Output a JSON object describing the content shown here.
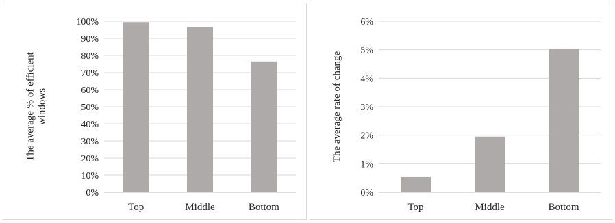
{
  "chart_data": [
    {
      "type": "bar",
      "categories": [
        "Top",
        "Middle",
        "Bottom"
      ],
      "values": [
        99.5,
        96.5,
        76.5
      ],
      "ylabel_lines": [
        "The average % of efficient",
        "windows"
      ],
      "ylim": [
        0,
        100
      ],
      "yticks": [
        "0%",
        "10%",
        "20%",
        "30%",
        "40%",
        "50%",
        "60%",
        "70%",
        "80%",
        "90%",
        "100%"
      ],
      "grid": true,
      "bar_color": "#aeaaaa"
    },
    {
      "type": "bar",
      "categories": [
        "Top",
        "Middle",
        "Bottom"
      ],
      "values": [
        0.53,
        1.95,
        5.02
      ],
      "ylabel_lines": [
        "The average rate of change"
      ],
      "ylim": [
        0,
        6
      ],
      "yticks": [
        "0%",
        "1%",
        "2%",
        "3%",
        "4%",
        "5%",
        "6%"
      ],
      "grid": true,
      "bar_color": "#aeaaaa"
    }
  ]
}
